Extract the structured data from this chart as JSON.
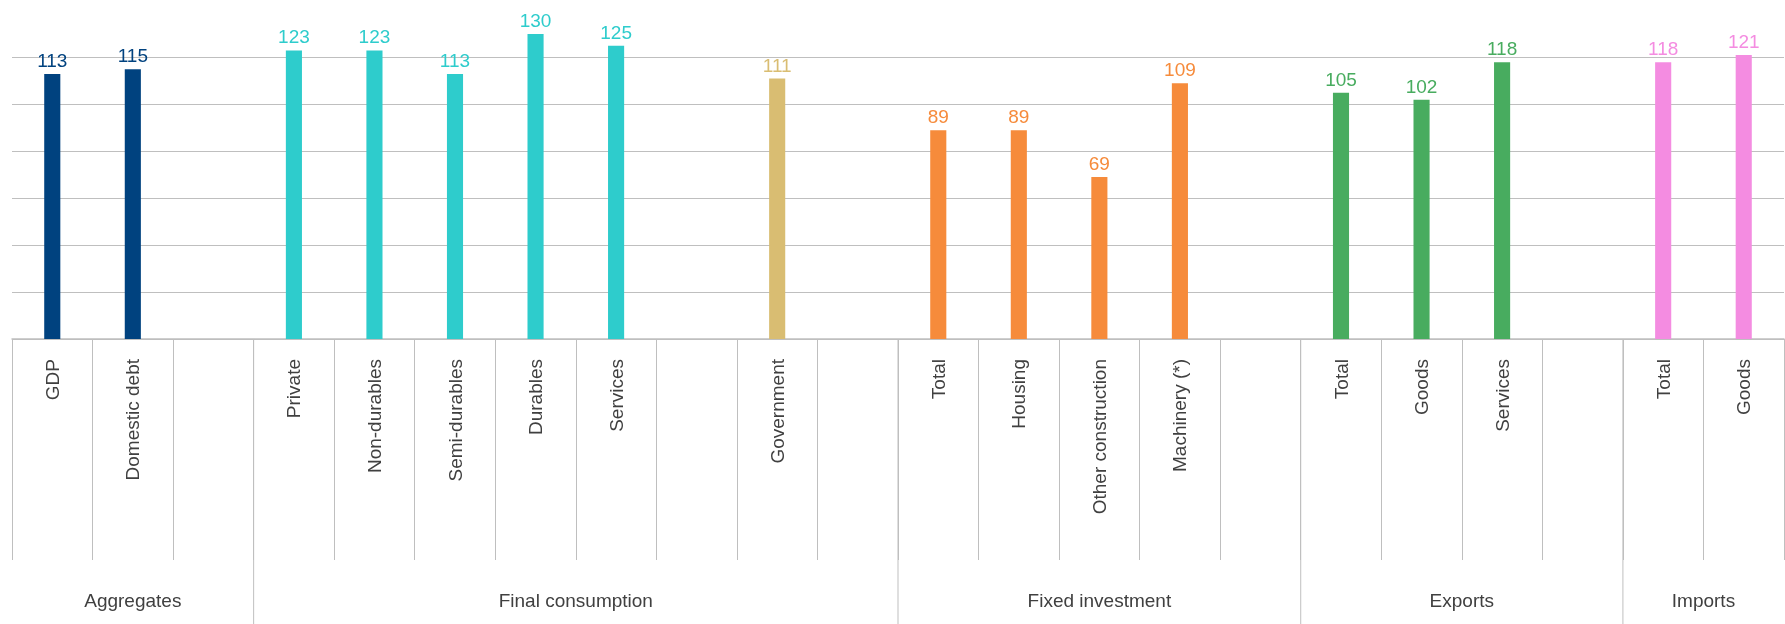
{
  "chart_data": {
    "type": "bar",
    "categories": [
      "GDP",
      "Domestic debt",
      null,
      "Private",
      "Non-durables",
      "Semi-durables",
      "Durables",
      "Services",
      null,
      "Government",
      null,
      "Total",
      "Housing",
      "Other construction",
      "Machinery (*)",
      null,
      "Total",
      "Goods",
      "Services",
      null,
      "Total",
      "Goods"
    ],
    "series": [
      {
        "color": "#00427f",
        "values": [
          113,
          115,
          null,
          null,
          null,
          null,
          null,
          null,
          null,
          null,
          null,
          null,
          null,
          null,
          null,
          null,
          null,
          null,
          null,
          null,
          null,
          null
        ]
      },
      {
        "color": "#2ecccc",
        "colors": [
          null,
          null,
          null,
          "#2ecccc",
          "#2ecccc",
          "#2ecccc",
          "#2ecccc",
          "#2ecccc",
          null,
          "#d9bd72",
          null,
          null,
          null,
          null,
          null,
          null,
          null,
          null,
          null,
          null,
          null,
          null
        ],
        "values": [
          null,
          null,
          null,
          123,
          123,
          113,
          130,
          125,
          null,
          111,
          null,
          null,
          null,
          null,
          null,
          null,
          null,
          null,
          null,
          null,
          null,
          null
        ]
      },
      {
        "color": "#f68b3b",
        "values": [
          null,
          null,
          null,
          null,
          null,
          null,
          null,
          null,
          null,
          null,
          null,
          89,
          89,
          69,
          109,
          null,
          null,
          null,
          null,
          null,
          null,
          null
        ]
      },
      {
        "color": "#48ac5f",
        "values": [
          null,
          null,
          null,
          null,
          null,
          null,
          null,
          null,
          null,
          null,
          null,
          null,
          null,
          null,
          null,
          null,
          105,
          102,
          118,
          null,
          null,
          null
        ]
      },
      {
        "color": "#f48ce1",
        "values": [
          null,
          null,
          null,
          null,
          null,
          null,
          null,
          null,
          null,
          null,
          null,
          null,
          null,
          null,
          null,
          null,
          null,
          null,
          null,
          null,
          118,
          121
        ]
      }
    ],
    "annotations": [
      "Aggregates",
      "Final consumption",
      "Fixed investment",
      "Exports",
      "Imports"
    ],
    "yticks": [
      {
        "value": 0,
        "label": null
      },
      {
        "value": 20,
        "label": null
      },
      {
        "value": 40,
        "label": null
      },
      {
        "value": 60,
        "label": null
      },
      {
        "value": 80,
        "label": null
      },
      {
        "value": 100,
        "label": null
      },
      {
        "value": 120,
        "label": null
      }
    ],
    "grid": "y",
    "tick_labels": "x",
    "data_labels": true
  }
}
